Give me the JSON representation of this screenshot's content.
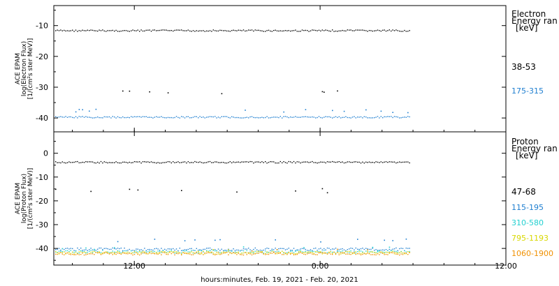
{
  "chart_data": [
    {
      "type": "scatter",
      "panel": "electron",
      "ylabel": [
        "ACE EPAM",
        "log(Electron Flux)",
        "[1/(cm²s ster MeV)]"
      ],
      "yticks": [
        -10,
        -20,
        -30,
        -40
      ],
      "ylim": [
        -44.5,
        -3.5
      ],
      "legend_title": [
        "Electron",
        "Energy ran",
        "[keV]"
      ],
      "series": [
        {
          "name": "38-53",
          "color": "#000000",
          "y_base": -11.5,
          "spike_y": -31.3
        },
        {
          "name": "175-315",
          "color": "#1f7fd0",
          "y_base": -39.6,
          "spike_y": -37.5
        }
      ]
    },
    {
      "type": "scatter",
      "panel": "proton",
      "ylabel": [
        "ACE EPAM",
        "log(Proton Flux)",
        "[1/(cm²s ster MeV)]"
      ],
      "yticks": [
        0,
        -10,
        -20,
        -30,
        -40
      ],
      "ylim": [
        -47,
        9
      ],
      "legend_title": [
        "Proton",
        "Energy ran",
        "[keV]"
      ],
      "series": [
        {
          "name": "47-68",
          "color": "#000000",
          "y_base": -3.6,
          "spike_y": -15.5
        },
        {
          "name": "115-195",
          "color": "#1f7fd0",
          "y_base": -40.2,
          "spike_y": -36.5
        },
        {
          "name": "310-580",
          "color": "#22d0d0",
          "y_base": -41.2,
          "spike_y": -40.0
        },
        {
          "name": "795-1193",
          "color": "#d8d800",
          "y_base": -41.6,
          "spike_y": -40.5
        },
        {
          "name": "1060-1900",
          "color": "#f09000",
          "y_base": -42.0,
          "spike_y": -41.0
        }
      ]
    }
  ],
  "x_axis": {
    "tick_labels": [
      "12:00",
      "0:00",
      "12:00"
    ],
    "tick_hours": [
      12,
      24,
      36
    ],
    "range_hours": [
      6.8,
      36
    ],
    "data_end_hours": 29.8,
    "label": "hours:minutes, Feb. 19, 2021 - Feb. 20, 2021"
  }
}
